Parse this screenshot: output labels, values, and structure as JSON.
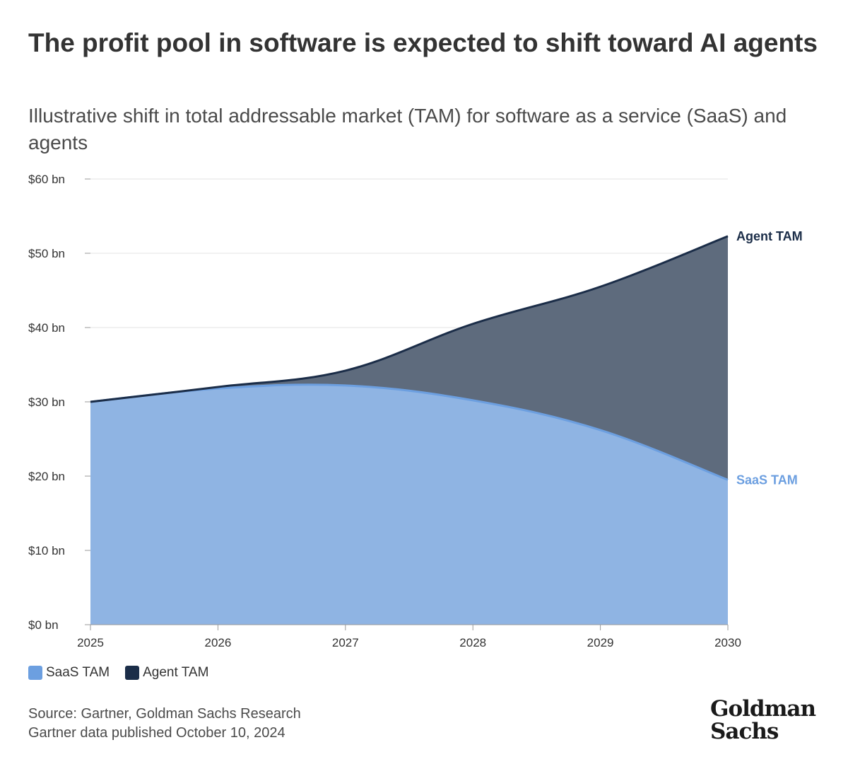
{
  "header": {
    "title": "The profit pool in software is expected to shift toward AI agents",
    "subtitle": "Illustrative shift in total addressable market (TAM) for software as a service (SaaS) and agents"
  },
  "colors": {
    "saas": "#6c9fe0",
    "saas_fill": "#8fb4e3",
    "agent": "#1b2d48",
    "agent_fill": "#5e6b7d",
    "grid": "#e3e3e3",
    "axis": "#999999"
  },
  "chart_data": {
    "type": "area",
    "title": "The profit pool in software is expected to shift toward AI agents",
    "subtitle": "Illustrative shift in total addressable market (TAM) for software as a service (SaaS) and agents",
    "x": [
      2025,
      2026,
      2027,
      2028,
      2029,
      2030
    ],
    "x_labels": [
      "2025",
      "2026",
      "2027",
      "2028",
      "2029",
      "2030"
    ],
    "y_ticks": [
      0,
      10,
      20,
      30,
      40,
      50,
      60
    ],
    "y_tick_labels": [
      "$0 bn",
      "$10 bn",
      "$20 bn",
      "$30 bn",
      "$40 bn",
      "$50 bn",
      "$60 bn"
    ],
    "ylim": [
      0,
      60
    ],
    "xlabel": "",
    "ylabel": "",
    "grid": true,
    "legend_position": "bottom-left",
    "series": [
      {
        "name": "SaaS TAM",
        "end_label": "SaaS TAM",
        "values": [
          30,
          31.8,
          32.2,
          30.2,
          26.2,
          19.5
        ]
      },
      {
        "name": "Agent TAM",
        "end_label": "Agent TAM",
        "values": [
          30,
          32,
          34.2,
          40.5,
          45.5,
          52.3
        ]
      }
    ]
  },
  "legend": {
    "items": [
      "SaaS TAM",
      "Agent TAM"
    ]
  },
  "footer": {
    "source_line1": "Source: Gartner, Goldman Sachs Research",
    "source_line2": "Gartner data published October 10, 2024",
    "logo_line1": "Goldman",
    "logo_line2": "Sachs"
  }
}
